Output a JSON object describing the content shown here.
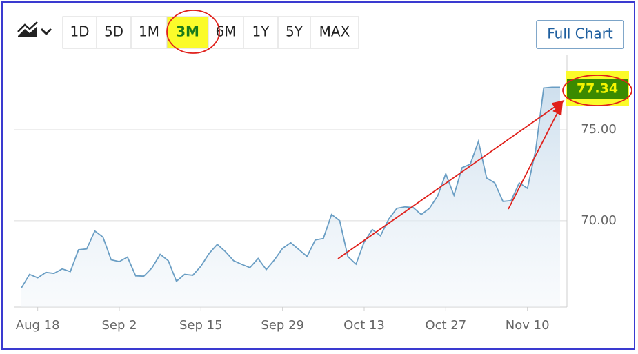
{
  "chart_data": {
    "type": "line",
    "ranges": [
      "1D",
      "5D",
      "1M",
      "3M",
      "6M",
      "1Y",
      "5Y",
      "MAX"
    ],
    "selected_range": "3M",
    "button": "Full Chart",
    "categories": [
      null,
      null,
      "Aug 18",
      null,
      null,
      null,
      null,
      null,
      null,
      null,
      null,
      null,
      "Sep 2",
      null,
      null,
      null,
      null,
      null,
      null,
      null,
      null,
      null,
      "Sep 15",
      null,
      null,
      null,
      null,
      null,
      null,
      null,
      null,
      null,
      "Sep 29",
      null,
      null,
      null,
      null,
      null,
      null,
      null,
      null,
      null,
      "Oct 13",
      null,
      null,
      null,
      null,
      null,
      null,
      null,
      null,
      null,
      "Oct 27",
      null,
      null,
      null,
      null,
      null,
      null,
      null,
      null,
      null,
      "Nov 10",
      null,
      null,
      null,
      null
    ],
    "values": [
      66.3,
      67.05,
      66.86,
      67.16,
      67.1,
      67.35,
      67.2,
      68.4,
      68.45,
      69.43,
      69.1,
      67.85,
      67.75,
      68.0,
      66.97,
      66.95,
      67.4,
      68.15,
      67.8,
      66.67,
      67.05,
      67.0,
      67.5,
      68.2,
      68.7,
      68.3,
      67.8,
      67.6,
      67.42,
      67.92,
      67.31,
      67.84,
      68.48,
      68.79,
      68.41,
      68.03,
      68.94,
      69.02,
      70.34,
      70.0,
      68.03,
      67.61,
      68.83,
      69.51,
      69.17,
      70.08,
      70.68,
      70.76,
      70.72,
      70.34,
      70.68,
      71.36,
      72.58,
      71.4,
      72.92,
      73.11,
      74.36,
      72.35,
      72.08,
      71.06,
      71.1,
      72.08,
      71.78,
      73.86,
      77.3,
      77.34,
      77.34
    ],
    "color": "#6a9ec4",
    "ylim": [
      65.25,
      79.1
    ],
    "yticks": [
      {
        "value": 70,
        "label": "70.00"
      },
      {
        "value": 75,
        "label": "75.00"
      }
    ],
    "grid": true
  }
}
